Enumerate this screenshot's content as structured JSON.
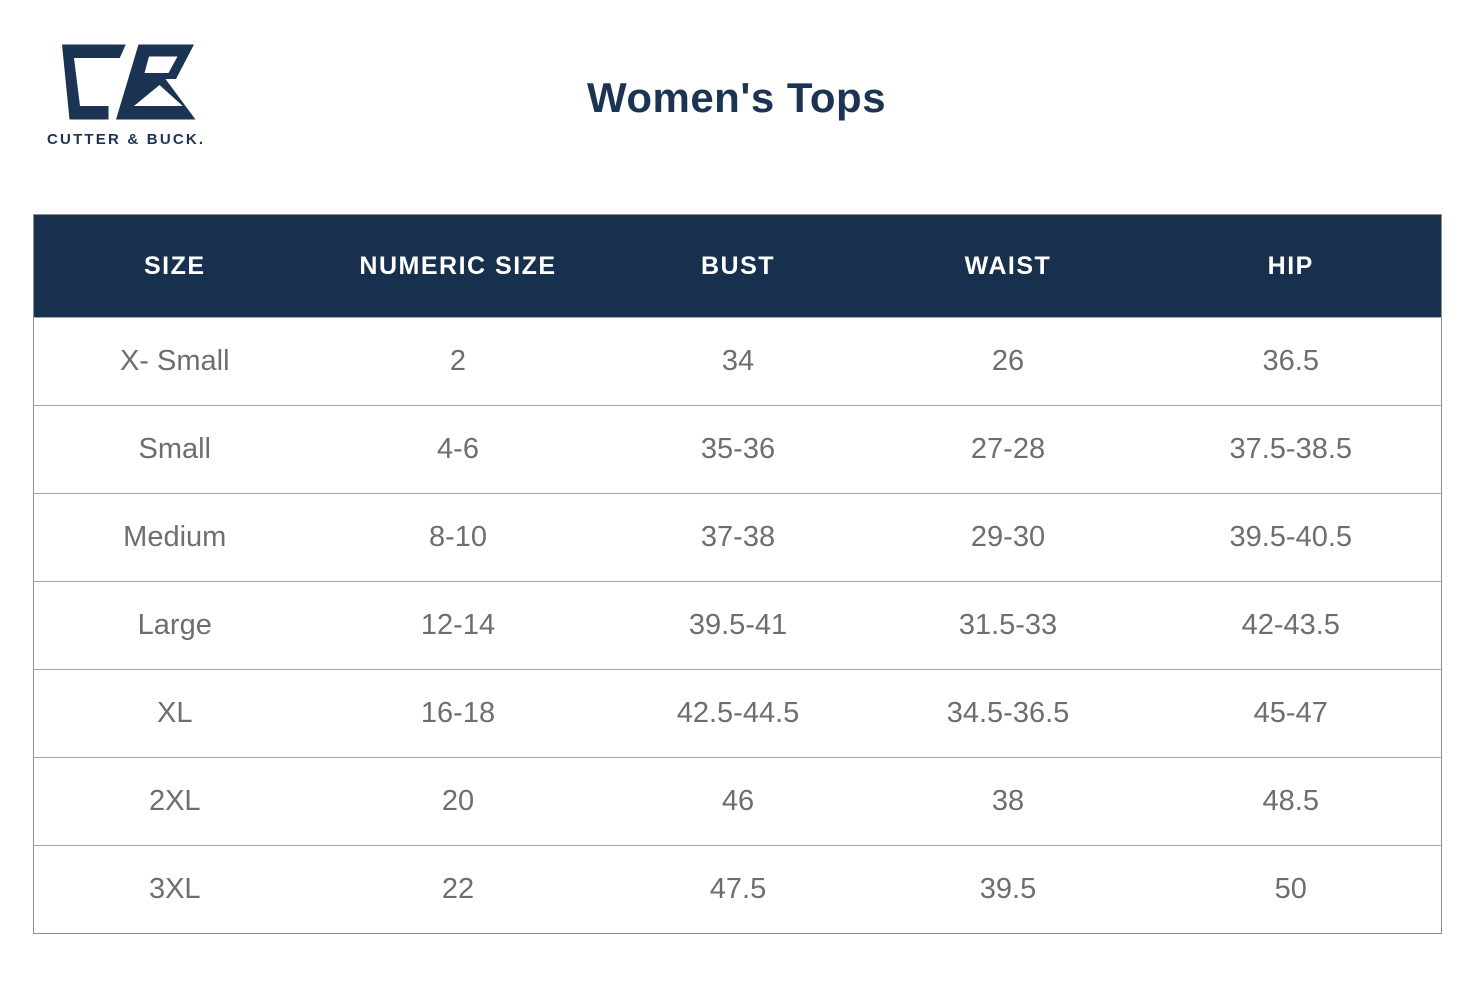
{
  "brand": {
    "name": "CUTTER & BUCK.",
    "logo_icon": "cb-monogram-icon",
    "navy": "#1C3454"
  },
  "title": "Women's Tops",
  "table": {
    "columns": [
      "SIZE",
      "NUMERIC SIZE",
      "BUST",
      "WAIST",
      "HIP"
    ],
    "rows": [
      [
        "X- Small",
        "2",
        "34",
        "26",
        "36.5"
      ],
      [
        "Small",
        "4-6",
        "35-36",
        "27-28",
        "37.5-38.5"
      ],
      [
        "Medium",
        "8-10",
        "37-38",
        "29-30",
        "39.5-40.5"
      ],
      [
        "Large",
        "12-14",
        "39.5-41",
        "31.5-33",
        "42-43.5"
      ],
      [
        "XL",
        "16-18",
        "42.5-44.5",
        "34.5-36.5",
        "45-47"
      ],
      [
        "2XL",
        "20",
        "46",
        "38",
        "48.5"
      ],
      [
        "3XL",
        "22",
        "47.5",
        "39.5",
        "50"
      ]
    ]
  },
  "chart_data": {
    "type": "table",
    "title": "Women's Tops",
    "columns": [
      "SIZE",
      "NUMERIC SIZE",
      "BUST",
      "WAIST",
      "HIP"
    ],
    "rows": [
      [
        "X- Small",
        "2",
        "34",
        "26",
        "36.5"
      ],
      [
        "Small",
        "4-6",
        "35-36",
        "27-28",
        "37.5-38.5"
      ],
      [
        "Medium",
        "8-10",
        "37-38",
        "29-30",
        "39.5-40.5"
      ],
      [
        "Large",
        "12-14",
        "39.5-41",
        "31.5-33",
        "42-43.5"
      ],
      [
        "XL",
        "16-18",
        "42.5-44.5",
        "34.5-36.5",
        "45-47"
      ],
      [
        "2XL",
        "20",
        "46",
        "38",
        "48.5"
      ],
      [
        "3XL",
        "22",
        "47.5",
        "39.5",
        "50"
      ]
    ],
    "layout": {
      "header_background": "#17304E",
      "header_text_color": "#FFFFFF",
      "body_text_color": "#6E6E6E",
      "row_divider_color": "#A6A6A6",
      "column_dividers": false
    }
  },
  "colors": {
    "navy": "#1C3454",
    "header_bg": "#17304E",
    "header_text": "#FFFFFF",
    "body_text": "#6E6E6E",
    "row_border": "#A6A6A6",
    "background": "#FFFFFF"
  }
}
